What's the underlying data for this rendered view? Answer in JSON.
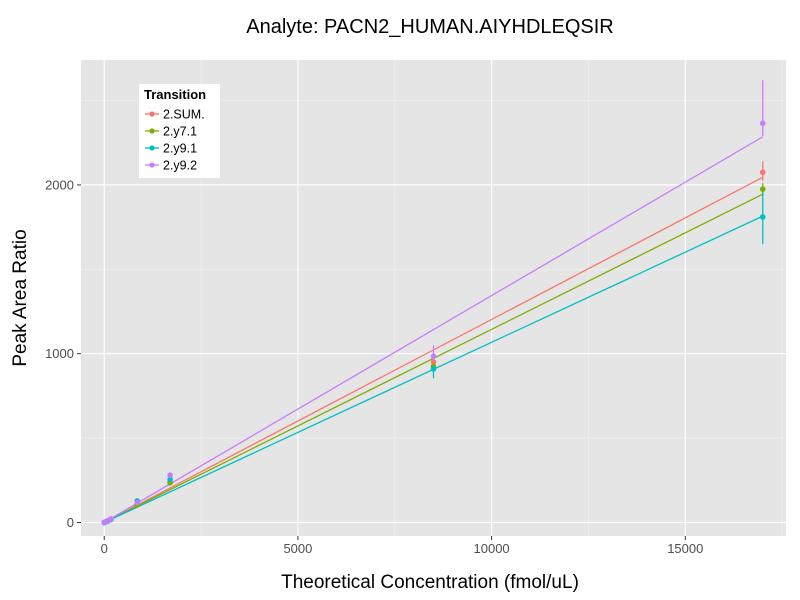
{
  "chart_data": {
    "type": "line",
    "title": "Analyte: PACN2_HUMAN.AIYHDLEQSIR",
    "xlabel": "Theoretical Concentration (fmol/uL)",
    "ylabel": "Peak Area Ratio",
    "xlim": [
      -600,
      17600
    ],
    "ylim": [
      -80,
      2740
    ],
    "xticks": [
      0,
      5000,
      10000,
      15000
    ],
    "xtick_labels": [
      "0",
      "5000",
      "10000",
      "15000"
    ],
    "yticks": [
      0,
      1000,
      2000
    ],
    "ytick_labels": [
      "0",
      "1000",
      "2000"
    ],
    "grid": true,
    "legend": {
      "title": "Transition",
      "placement": "top-left",
      "entries": [
        "2.SUM.",
        "2.y7.1",
        "2.y9.1",
        "2.y9.2"
      ]
    },
    "series": [
      {
        "name": "2.SUM.",
        "color": "#F8766D",
        "fit": {
          "x": [
            0,
            17000
          ],
          "y": [
            0,
            2045
          ]
        },
        "points": [
          {
            "x": 0,
            "y": 0
          },
          {
            "x": 30,
            "y": 3
          },
          {
            "x": 85,
            "y": 9
          },
          {
            "x": 170,
            "y": 19
          },
          {
            "x": 850,
            "y": 108
          },
          {
            "x": 1700,
            "y": 240
          },
          {
            "x": 8500,
            "y": 950,
            "ymin": 920,
            "ymax": 985
          },
          {
            "x": 17000,
            "y": 2075,
            "ymin": 2025,
            "ymax": 2140
          }
        ]
      },
      {
        "name": "2.y7.1",
        "color": "#7CAE00",
        "fit": {
          "x": [
            0,
            17000
          ],
          "y": [
            0,
            1945
          ]
        },
        "points": [
          {
            "x": 0,
            "y": 0
          },
          {
            "x": 30,
            "y": 3
          },
          {
            "x": 85,
            "y": 9
          },
          {
            "x": 170,
            "y": 18
          },
          {
            "x": 850,
            "y": 105
          },
          {
            "x": 1700,
            "y": 235
          },
          {
            "x": 8500,
            "y": 925
          },
          {
            "x": 17000,
            "y": 1975,
            "ymin": 1935,
            "ymax": 2010
          }
        ]
      },
      {
        "name": "2.y9.1",
        "color": "#00BFC4",
        "fit": {
          "x": [
            0,
            17000
          ],
          "y": [
            0,
            1815
          ]
        },
        "points": [
          {
            "x": 0,
            "y": 0
          },
          {
            "x": 30,
            "y": 3
          },
          {
            "x": 85,
            "y": 8
          },
          {
            "x": 170,
            "y": 17
          },
          {
            "x": 850,
            "y": 128
          },
          {
            "x": 1700,
            "y": 255
          },
          {
            "x": 8500,
            "y": 910,
            "ymin": 855,
            "ymax": 960
          },
          {
            "x": 17000,
            "y": 1810,
            "ymin": 1650,
            "ymax": 1960
          }
        ]
      },
      {
        "name": "2.y9.2",
        "color": "#C77CFF",
        "fit": {
          "x": [
            0,
            17000
          ],
          "y": [
            0,
            2285
          ]
        },
        "points": [
          {
            "x": 0,
            "y": 0
          },
          {
            "x": 30,
            "y": 4
          },
          {
            "x": 85,
            "y": 10
          },
          {
            "x": 170,
            "y": 22
          },
          {
            "x": 850,
            "y": 118
          },
          {
            "x": 1700,
            "y": 280
          },
          {
            "x": 8500,
            "y": 985,
            "ymin": 935,
            "ymax": 1050
          },
          {
            "x": 17000,
            "y": 2365,
            "ymin": 2290,
            "ymax": 2620
          }
        ]
      }
    ]
  }
}
